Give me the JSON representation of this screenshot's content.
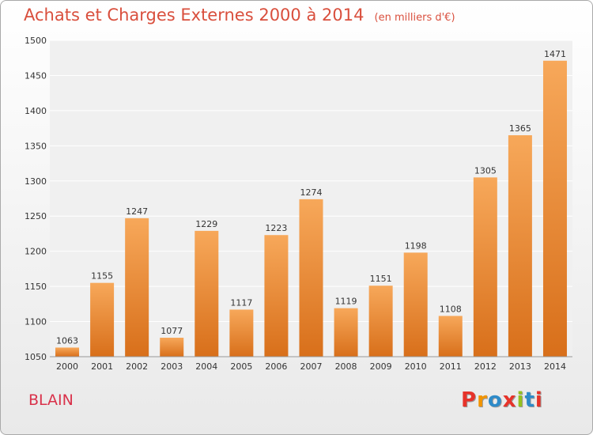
{
  "chart_data": {
    "type": "bar",
    "title": "Achats et Charges Externes 2000 à 2014",
    "unit_note": "(en milliers d'€)",
    "categories": [
      "2000",
      "2001",
      "2002",
      "2003",
      "2004",
      "2005",
      "2006",
      "2007",
      "2008",
      "2009",
      "2010",
      "2011",
      "2012",
      "2013",
      "2014"
    ],
    "values": [
      1063,
      1155,
      1247,
      1077,
      1229,
      1117,
      1223,
      1274,
      1119,
      1151,
      1198,
      1108,
      1305,
      1365,
      1471
    ],
    "ylim": [
      1050,
      1500
    ],
    "yticks": [
      1050,
      1100,
      1150,
      1200,
      1250,
      1300,
      1350,
      1400,
      1450,
      1500
    ],
    "grid": true,
    "legend": "none"
  },
  "footer": {
    "city": "BLAIN",
    "logo_letters": [
      "P",
      "r",
      "o",
      "x",
      "i",
      "t",
      "i"
    ],
    "logo_colors": [
      "#e6332a",
      "#f29400",
      "#2e8bc9",
      "#e6332a",
      "#95c11f",
      "#2e8bc9",
      "#e6332a"
    ]
  }
}
